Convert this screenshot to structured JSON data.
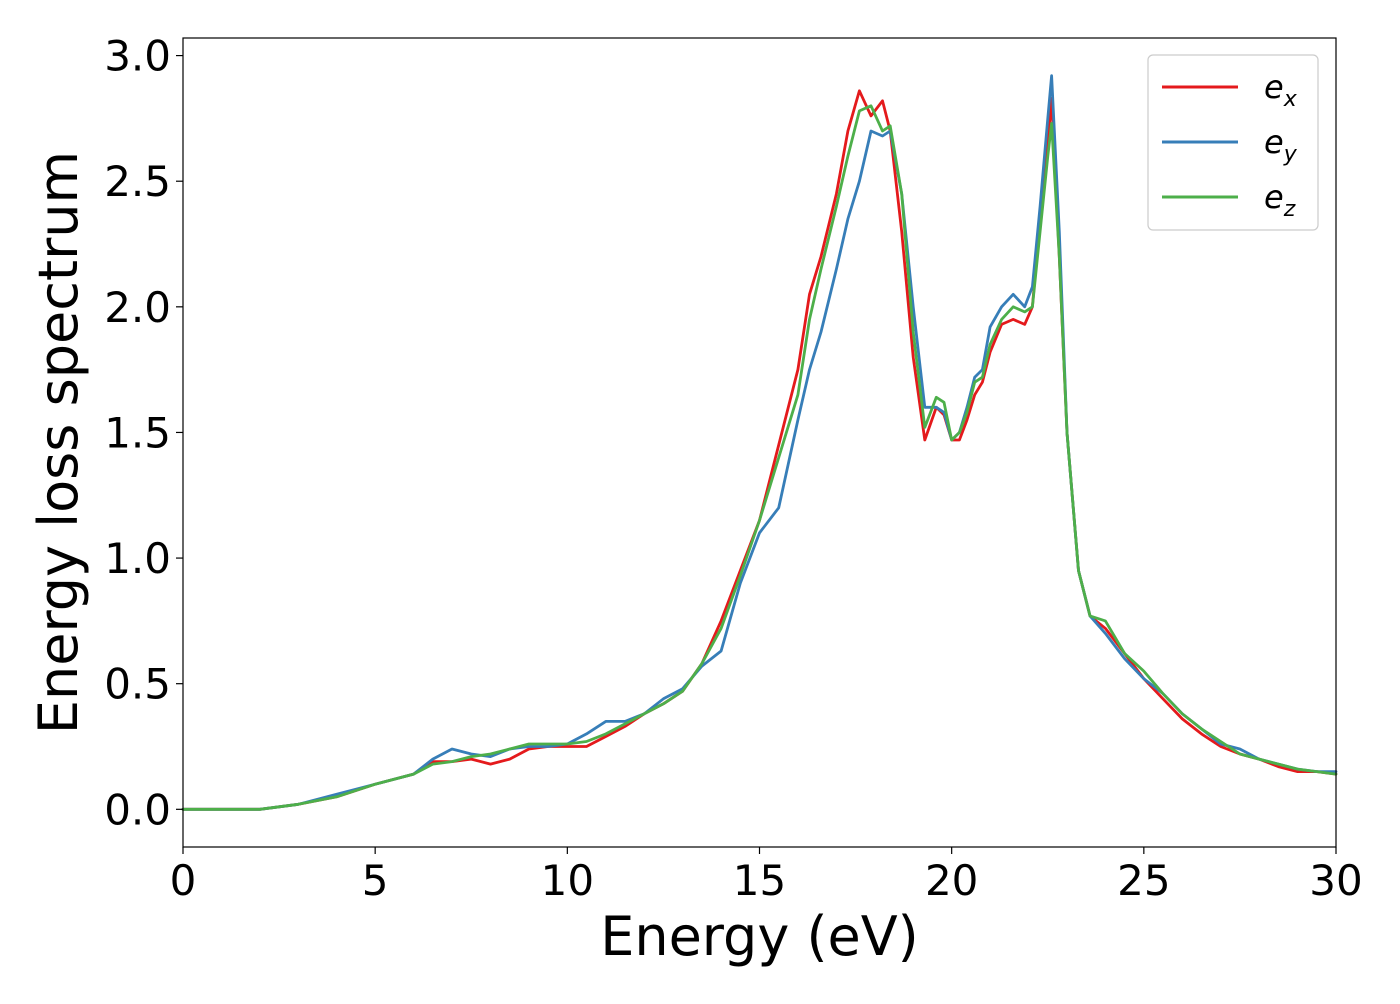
{
  "chart_data": {
    "type": "line",
    "title": "",
    "xlabel": "Energy (eV)",
    "ylabel": "Energy loss spectrum",
    "xlim": [
      0,
      30
    ],
    "ylim": [
      -0.15,
      3.07
    ],
    "xticks": [
      0,
      5,
      10,
      15,
      20,
      25,
      30
    ],
    "yticks": [
      0.0,
      0.5,
      1.0,
      1.5,
      2.0,
      2.5,
      3.0
    ],
    "xtick_labels": [
      "0",
      "5",
      "10",
      "15",
      "20",
      "25",
      "30"
    ],
    "ytick_labels": [
      "0.0",
      "0.5",
      "1.0",
      "1.5",
      "2.0",
      "2.5",
      "3.0"
    ],
    "grid": false,
    "legend_position": "top-right",
    "series": [
      {
        "name": "e_x",
        "label_base": "e",
        "label_sub": "x",
        "color": "#e41a1c",
        "x": [
          0,
          1,
          2,
          2.5,
          3,
          4,
          5,
          6,
          6.5,
          7,
          7.5,
          8,
          8.5,
          9,
          9.5,
          10,
          10.5,
          11,
          11.5,
          12,
          12.5,
          13,
          13.5,
          14,
          14.5,
          15,
          15.5,
          16,
          16.3,
          16.6,
          17,
          17.3,
          17.6,
          17.9,
          18.2,
          18.4,
          18.7,
          19,
          19.3,
          19.6,
          19.8,
          20,
          20.2,
          20.4,
          20.6,
          20.8,
          21,
          21.3,
          21.6,
          21.9,
          22.1,
          22.3,
          22.5,
          22.6,
          22.8,
          23,
          23.3,
          23.6,
          24,
          24.5,
          25,
          25.5,
          26,
          26.5,
          27,
          27.5,
          28,
          28.5,
          29,
          29.5,
          30
        ],
        "y": [
          0.0,
          0.0,
          0.0,
          0.01,
          0.02,
          0.05,
          0.1,
          0.14,
          0.19,
          0.19,
          0.2,
          0.18,
          0.2,
          0.24,
          0.25,
          0.25,
          0.25,
          0.29,
          0.33,
          0.38,
          0.42,
          0.47,
          0.58,
          0.75,
          0.95,
          1.15,
          1.45,
          1.75,
          2.05,
          2.2,
          2.45,
          2.7,
          2.86,
          2.76,
          2.82,
          2.7,
          2.3,
          1.8,
          1.47,
          1.6,
          1.57,
          1.47,
          1.47,
          1.55,
          1.65,
          1.7,
          1.82,
          1.93,
          1.95,
          1.93,
          2.0,
          2.35,
          2.65,
          2.83,
          2.2,
          1.5,
          0.95,
          0.77,
          0.72,
          0.62,
          0.52,
          0.44,
          0.36,
          0.3,
          0.25,
          0.22,
          0.2,
          0.17,
          0.15,
          0.15,
          0.14
        ]
      },
      {
        "name": "e_y",
        "label_base": "e",
        "label_sub": "y",
        "color": "#377eb8",
        "x": [
          0,
          1,
          2,
          2.5,
          3,
          4,
          5,
          6,
          6.5,
          7,
          7.5,
          8,
          8.5,
          9,
          9.5,
          10,
          10.5,
          11,
          11.5,
          12,
          12.5,
          13,
          13.5,
          14,
          14.5,
          15,
          15.5,
          16,
          16.3,
          16.6,
          17,
          17.3,
          17.6,
          17.9,
          18.2,
          18.4,
          18.7,
          19,
          19.3,
          19.6,
          19.8,
          20,
          20.2,
          20.4,
          20.6,
          20.8,
          21,
          21.3,
          21.6,
          21.9,
          22.1,
          22.3,
          22.5,
          22.6,
          22.8,
          23,
          23.3,
          23.6,
          24,
          24.5,
          25,
          25.5,
          26,
          26.5,
          27,
          27.5,
          28,
          28.5,
          29,
          29.5,
          30
        ],
        "y": [
          0.0,
          0.0,
          0.0,
          0.01,
          0.02,
          0.06,
          0.1,
          0.14,
          0.2,
          0.24,
          0.22,
          0.21,
          0.24,
          0.25,
          0.25,
          0.26,
          0.3,
          0.35,
          0.35,
          0.38,
          0.44,
          0.48,
          0.57,
          0.63,
          0.9,
          1.1,
          1.2,
          1.55,
          1.75,
          1.9,
          2.15,
          2.35,
          2.5,
          2.7,
          2.68,
          2.7,
          2.45,
          2.0,
          1.6,
          1.6,
          1.58,
          1.47,
          1.5,
          1.6,
          1.72,
          1.75,
          1.92,
          2.0,
          2.05,
          2.0,
          2.08,
          2.4,
          2.75,
          2.92,
          2.3,
          1.5,
          0.95,
          0.77,
          0.7,
          0.6,
          0.52,
          0.46,
          0.38,
          0.32,
          0.26,
          0.24,
          0.2,
          0.18,
          0.16,
          0.15,
          0.15
        ]
      },
      {
        "name": "e_z",
        "label_base": "e",
        "label_sub": "z",
        "color": "#4daf4a",
        "x": [
          0,
          1,
          2,
          2.5,
          3,
          4,
          5,
          6,
          6.5,
          7,
          7.5,
          8,
          8.5,
          9,
          9.5,
          10,
          10.5,
          11,
          11.5,
          12,
          12.5,
          13,
          13.5,
          14,
          14.5,
          15,
          15.5,
          16,
          16.3,
          16.6,
          17,
          17.3,
          17.6,
          17.9,
          18.2,
          18.4,
          18.7,
          19,
          19.3,
          19.6,
          19.8,
          20,
          20.2,
          20.4,
          20.6,
          20.8,
          21,
          21.3,
          21.6,
          21.9,
          22.1,
          22.3,
          22.5,
          22.6,
          22.8,
          23,
          23.3,
          23.6,
          24,
          24.5,
          25,
          25.5,
          26,
          26.5,
          27,
          27.5,
          28,
          28.5,
          29,
          29.5,
          30
        ],
        "y": [
          0.0,
          0.0,
          0.0,
          0.01,
          0.02,
          0.05,
          0.1,
          0.14,
          0.18,
          0.19,
          0.21,
          0.22,
          0.24,
          0.26,
          0.26,
          0.26,
          0.27,
          0.3,
          0.34,
          0.38,
          0.42,
          0.47,
          0.58,
          0.72,
          0.93,
          1.15,
          1.4,
          1.65,
          1.95,
          2.15,
          2.4,
          2.6,
          2.78,
          2.8,
          2.7,
          2.72,
          2.45,
          1.9,
          1.52,
          1.64,
          1.62,
          1.47,
          1.5,
          1.58,
          1.7,
          1.72,
          1.85,
          1.95,
          2.0,
          1.98,
          2.0,
          2.3,
          2.6,
          2.73,
          2.2,
          1.5,
          0.95,
          0.77,
          0.75,
          0.62,
          0.55,
          0.46,
          0.38,
          0.32,
          0.27,
          0.22,
          0.2,
          0.18,
          0.16,
          0.15,
          0.14
        ]
      }
    ]
  }
}
